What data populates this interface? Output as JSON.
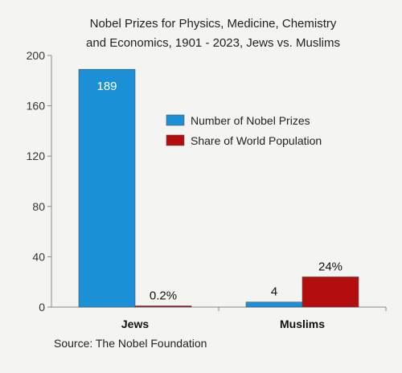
{
  "chart_data": {
    "type": "bar",
    "title_lines": [
      "Nobel Prizes for Physics, Medicine, Chemistry",
      "and Economics, 1901 - 2023, Jews vs. Muslims"
    ],
    "categories": [
      "Jews",
      "Muslims"
    ],
    "series": [
      {
        "name": "Number of Nobel Prizes",
        "values": [
          189,
          4
        ],
        "labels": [
          "189",
          "4"
        ],
        "color": "#1b90d6"
      },
      {
        "name": "Share of World Population",
        "values": [
          0.2,
          24
        ],
        "labels": [
          "0.2%",
          "24%"
        ],
        "color": "#b30d0d"
      }
    ],
    "yticks": [
      "0",
      "40",
      "80",
      "120",
      "160",
      "200"
    ],
    "ylim": [
      0,
      200
    ],
    "legend_position": "center-right",
    "grid": false,
    "source": "Source: The Nobel Foundation"
  }
}
